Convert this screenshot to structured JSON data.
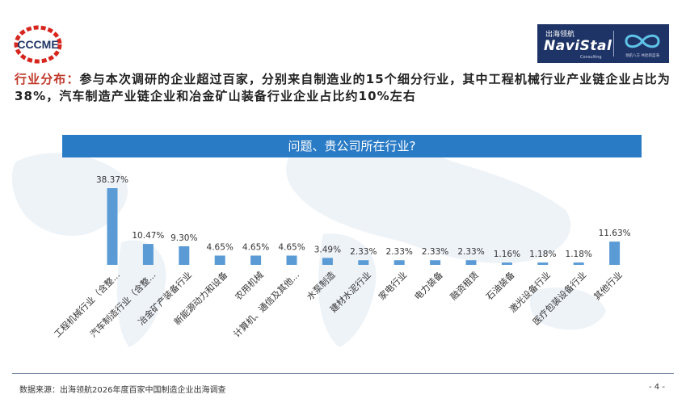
{
  "header": {
    "left_logo_text": "CCCME",
    "right_logo": {
      "cn": "出海领航",
      "brand": "NaviStal",
      "sub": "Consulting",
      "tagline": "领航八方 共赴新蓝海"
    }
  },
  "intro": {
    "lead": "行业分布：",
    "body": "参与本次调研的企业超过百家，分别来自制造业的15个细分行业，其中工程机械行业产业链企业占比为38%，汽车制造产业链企业和冶金矿山装备行业企业占比约10%左右"
  },
  "colors": {
    "bar": "#5b9bd5",
    "banner": "#2a7bc6",
    "lead_text": "#c0392b",
    "logo_red": "#d7261e",
    "logo_blue": "#1f3466"
  },
  "chart_data": {
    "type": "bar",
    "title": "问题、贵公司所在行业?",
    "categories": [
      "工程机械行业（含整...",
      "汽车制造行业（含整...",
      "冶金矿产装备行业",
      "新能源动力和设备",
      "农用机械",
      "计算机、通信及其他...",
      "水泵制造",
      "建材水泥行业",
      "家电行业",
      "电力装备",
      "融资租赁",
      "石油装备",
      "激光设备行业",
      "医疗包装设备行业",
      "其他行业"
    ],
    "values": [
      38.37,
      10.47,
      9.3,
      4.65,
      4.65,
      4.65,
      3.49,
      2.33,
      2.33,
      2.33,
      2.33,
      1.16,
      1.18,
      1.18,
      11.63
    ],
    "value_labels": [
      "38.37%",
      "10.47%",
      "9.30%",
      "4.65%",
      "4.65%",
      "4.65%",
      "3.49%",
      "2.33%",
      "2.33%",
      "2.33%",
      "2.33%",
      "1.16%",
      "1.18%",
      "1.18%",
      "11.63%"
    ],
    "xlabel": "",
    "ylabel": "",
    "ylim": [
      0,
      38.37
    ],
    "grid": false,
    "legend": "none"
  },
  "footer": {
    "source": "数据来源：出海领航2026年度百家中国制造企业出海调查",
    "page": "- 4 -"
  }
}
